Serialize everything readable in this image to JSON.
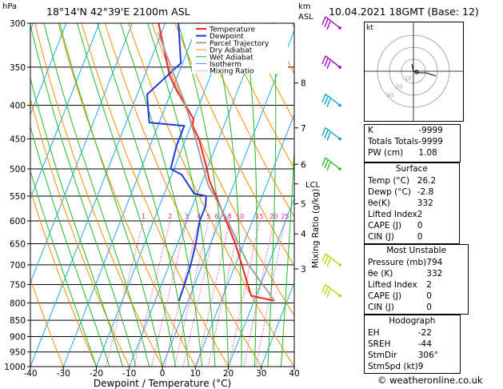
{
  "header": {
    "hpa": "hPa",
    "location": "18°14'N  42°39'E  2100m  ASL",
    "km": "km",
    "asl": "ASL",
    "datetime": "10.04.2021  18GMT  (Base: 12)"
  },
  "colors": {
    "temperature": "#ff2020",
    "dewpoint": "#1a3cdc",
    "parcel": "#a0a0a0",
    "dry_adiabat": "#ff8c00",
    "wet_adiabat": "#22bb22",
    "isotherm": "#22a8e8",
    "mixing_ratio": "#e0209a"
  },
  "chart_data": {
    "type": "line",
    "subtype": "skew-t log-p",
    "xlabel": "Dewpoint / Temperature (°C)",
    "ylabel": "",
    "xlim": [
      -40,
      40
    ],
    "ylim": [
      1000,
      300
    ],
    "x_ticks": [
      "-40",
      "-30",
      "-20",
      "-10",
      "0",
      "10",
      "20",
      "30",
      "40"
    ],
    "pressure_ticks": [
      "300",
      "350",
      "400",
      "450",
      "500",
      "550",
      "600",
      "650",
      "700",
      "750",
      "800",
      "850",
      "900",
      "950",
      "1000"
    ],
    "km_ticks": [
      {
        "label": "8",
        "p": 370
      },
      {
        "label": "7",
        "p": 433
      },
      {
        "label": "6",
        "p": 492
      },
      {
        "label": "5",
        "p": 565
      },
      {
        "label": "4",
        "p": 628
      },
      {
        "label": "3",
        "p": 710
      }
    ],
    "lcl": {
      "label": "LCL",
      "p": 527
    },
    "mixing_ratio_axis_label": "Mixing Ratio (g/kg)",
    "mixing_ratio_labels": [
      "1",
      "2",
      "3",
      "4",
      "5",
      "6",
      "8",
      "10",
      "15",
      "20",
      "25"
    ],
    "mixing_ratio_label_p": 600,
    "legend": [
      "Temperature",
      "Dewpoint",
      "Parcel Trajectory",
      "Dry Adiabat",
      "Wet Adiabat",
      "Isotherm",
      "Mixing Ratio"
    ],
    "legend_position": "top-right",
    "series": [
      {
        "name": "Temperature",
        "points": [
          [
            794,
            26.2
          ],
          [
            780,
            18.5
          ],
          [
            700,
            12.0
          ],
          [
            650,
            7.5
          ],
          [
            600,
            2.0
          ],
          [
            550,
            -4.0
          ],
          [
            520,
            -8.0
          ],
          [
            500,
            -10.0
          ],
          [
            450,
            -16.0
          ],
          [
            430,
            -19.5
          ],
          [
            420,
            -20.0
          ],
          [
            400,
            -24.0
          ],
          [
            380,
            -28.5
          ],
          [
            360,
            -32.5
          ],
          [
            330,
            -37.0
          ],
          [
            300,
            -42.0
          ]
        ]
      },
      {
        "name": "Dewpoint",
        "points": [
          [
            794,
            -2.8
          ],
          [
            760,
            -3.0
          ],
          [
            700,
            -3.5
          ],
          [
            650,
            -4.5
          ],
          [
            600,
            -6.0
          ],
          [
            570,
            -6.0
          ],
          [
            550,
            -7.0
          ],
          [
            545,
            -11.0
          ],
          [
            510,
            -17.0
          ],
          [
            500,
            -21.0
          ],
          [
            460,
            -22.0
          ],
          [
            430,
            -22.0
          ],
          [
            425,
            -33.0
          ],
          [
            405,
            -35.0
          ],
          [
            385,
            -37.0
          ],
          [
            345,
            -30.5
          ],
          [
            300,
            -36.0
          ]
        ]
      },
      {
        "name": "Parcel Trajectory",
        "points": [
          [
            794,
            26.2
          ],
          [
            700,
            14.0
          ],
          [
            600,
            2.5
          ],
          [
            527,
            -8.0
          ],
          [
            500,
            -11.0
          ],
          [
            450,
            -17.0
          ],
          [
            400,
            -24.0
          ],
          [
            350,
            -33.0
          ],
          [
            310,
            -41.0
          ]
        ]
      }
    ]
  },
  "hodograph": {
    "label": "kt",
    "ring_labels": [
      "10",
      "20",
      "30"
    ]
  },
  "indices": {
    "rows": [
      {
        "label": "K",
        "value": "-9999"
      },
      {
        "label": "Totals Totals",
        "value": "-9999"
      },
      {
        "label": "PW (cm)",
        "value": "1.08"
      }
    ]
  },
  "surface": {
    "title": "Surface",
    "rows": [
      {
        "label": "Temp (°C)",
        "value": "26.2"
      },
      {
        "label": "Dewp (°C)",
        "value": "-2.8"
      },
      {
        "label": "θe(K)",
        "value": "332"
      },
      {
        "label": "Lifted Index",
        "value": "2"
      },
      {
        "label": "CAPE (J)",
        "value": "0"
      },
      {
        "label": "CIN (J)",
        "value": "0"
      }
    ]
  },
  "most_unstable": {
    "title": "Most Unstable",
    "rows": [
      {
        "label": "Pressure (mb)",
        "value": "794"
      },
      {
        "label": "θe (K)",
        "value": "332"
      },
      {
        "label": "Lifted Index",
        "value": "2"
      },
      {
        "label": "CAPE (J)",
        "value": "0"
      },
      {
        "label": "CIN (J)",
        "value": "0"
      }
    ]
  },
  "hodograph_params": {
    "title": "Hodograph",
    "rows": [
      {
        "label": "EH",
        "value": "-22"
      },
      {
        "label": "SREH",
        "value": "-44"
      },
      {
        "label": "StmDir",
        "value": "306°"
      },
      {
        "label": "StmSpd (kt)",
        "value": "9"
      }
    ]
  },
  "footer": "© weatheronline.co.uk"
}
